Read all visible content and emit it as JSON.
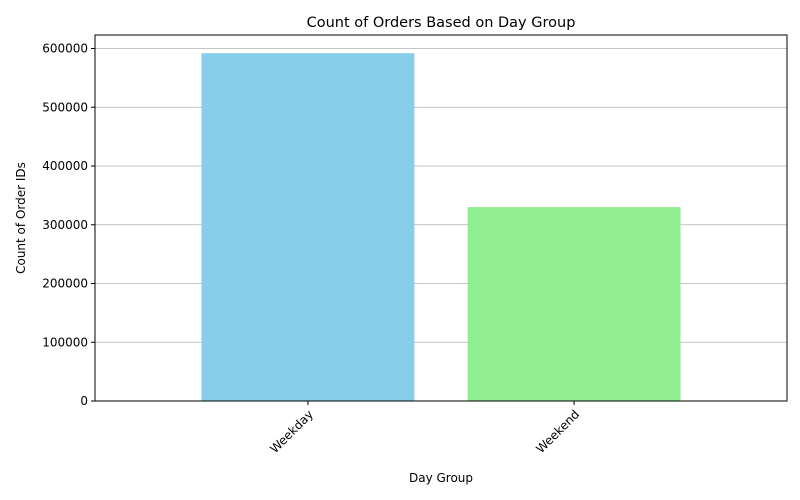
{
  "chart_data": {
    "type": "bar",
    "title": "Count of Orders Based on Day Group",
    "xlabel": "Day Group",
    "ylabel": "Count of Order IDs",
    "categories": [
      "Weekday",
      "Weekend"
    ],
    "values": [
      592000,
      330000
    ],
    "colors": [
      "#87ceeb",
      "#90ee90"
    ],
    "ylim": [
      0,
      623000
    ],
    "yticks": [
      0,
      100000,
      200000,
      300000,
      400000,
      500000,
      600000
    ],
    "ytick_labels": [
      "0",
      "100000",
      "200000",
      "300000",
      "400000",
      "500000",
      "600000"
    ],
    "xtick_rotation": 45,
    "grid": "y-axis, gray",
    "legend": "none"
  }
}
